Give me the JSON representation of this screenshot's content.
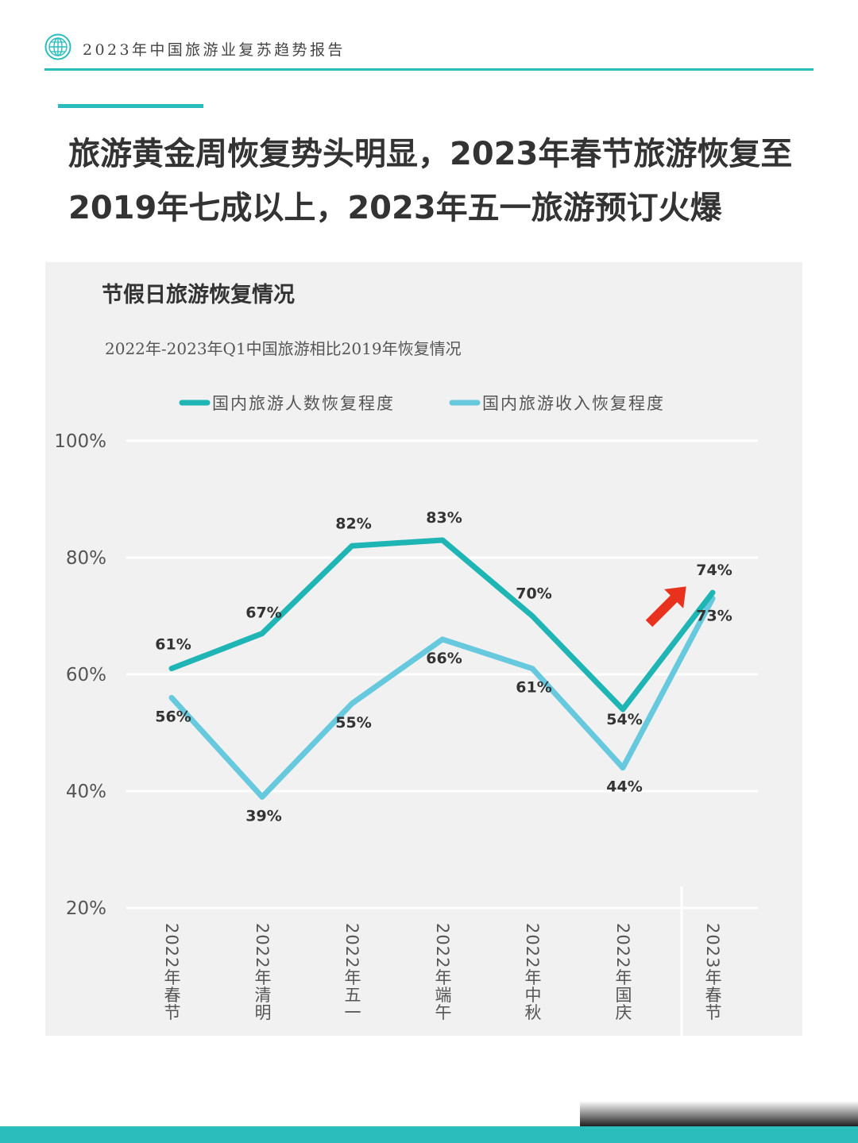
{
  "header": {
    "title": "2023年中国旅游业复苏趋势报告"
  },
  "headline": {
    "line1": "旅游黄金周恢复势头明显，2023年春节旅游恢复至",
    "line2": "2019年七成以上，2023年五一旅游预订火爆"
  },
  "colors": {
    "accent": "#2bbcbc",
    "series1": "#1fb5b5",
    "series2": "#66c9de",
    "arrow": "#e8321e"
  },
  "chart_data": {
    "type": "line",
    "title": "节假日旅游恢复情况",
    "subtitle": "2022年-2023年Q1中国旅游相比2019年恢复情况",
    "categories": [
      "2022年春节",
      "2022年清明",
      "2022年五一",
      "2022年端午",
      "2022年中秋",
      "2022年国庆",
      "2023年春节"
    ],
    "series": [
      {
        "name": "国内旅游人数恢复程度",
        "values": [
          61,
          67,
          82,
          83,
          70,
          54,
          74
        ],
        "labels": [
          "61%",
          "67%",
          "82%",
          "83%",
          "70%",
          "54%",
          "74%"
        ]
      },
      {
        "name": "国内旅游收入恢复程度",
        "values": [
          56,
          39,
          55,
          66,
          61,
          44,
          73
        ],
        "labels": [
          "56%",
          "39%",
          "55%",
          "66%",
          "61%",
          "44%",
          "73%"
        ]
      }
    ],
    "ylim": [
      20,
      100
    ],
    "yticks": [
      "20%",
      "40%",
      "60%",
      "80%",
      "100%"
    ],
    "ytick_values": [
      20,
      40,
      60,
      80,
      100
    ],
    "grid": true,
    "legend": "top"
  }
}
